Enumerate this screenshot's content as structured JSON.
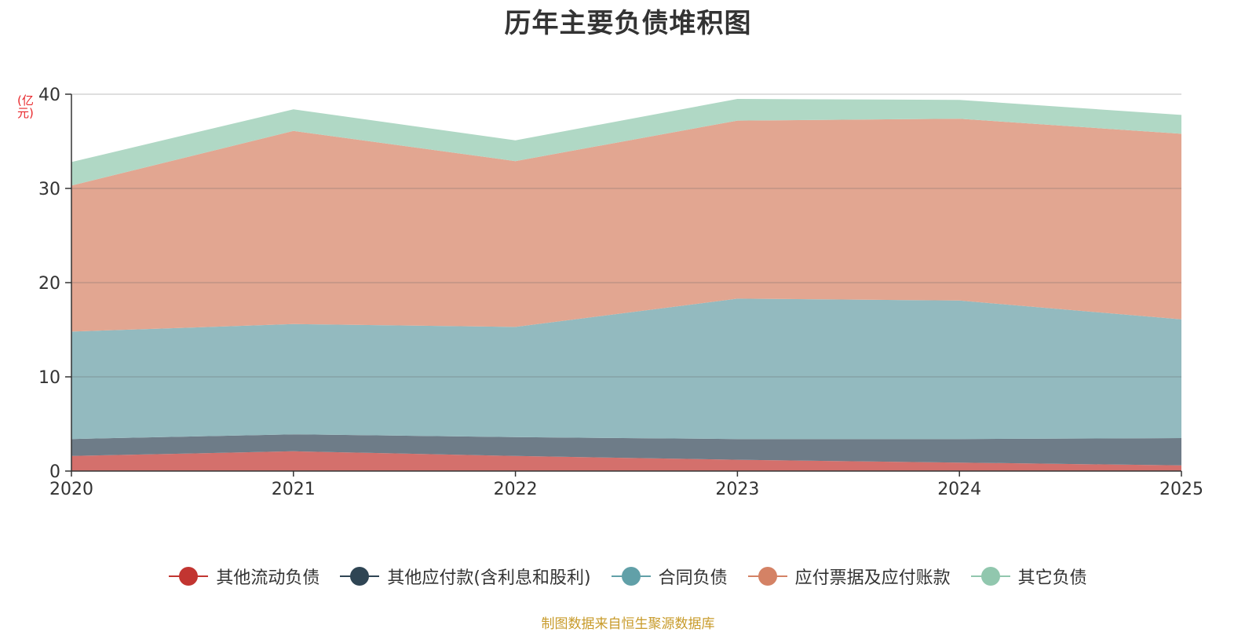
{
  "chart_data": {
    "type": "area",
    "stacked": true,
    "title": "历年主要负债堆积图",
    "ylabel": "(亿元)",
    "xlabel": "",
    "categories": [
      "2020",
      "2021",
      "2022",
      "2023",
      "2024",
      "2025"
    ],
    "ylim": [
      0,
      40
    ],
    "yticks": [
      0,
      10,
      20,
      30,
      40
    ],
    "grid": true,
    "legend_position": "bottom",
    "series": [
      {
        "name": "其他流动负债",
        "color": "#c23531",
        "fill": "#d4706c",
        "values": [
          1.6,
          2.1,
          1.6,
          1.2,
          0.9,
          0.6
        ]
      },
      {
        "name": "其他应付款(含利息和股利)",
        "color": "#2f4554",
        "fill": "#6e7c88",
        "values": [
          1.8,
          1.8,
          2.0,
          2.2,
          2.5,
          2.9
        ]
      },
      {
        "name": "合同负债",
        "color": "#61a0a8",
        "fill": "#93babf",
        "values": [
          11.4,
          11.7,
          11.7,
          14.9,
          14.7,
          12.6
        ]
      },
      {
        "name": "应付票据及应付账款",
        "color": "#d48265",
        "fill": "#e2a691",
        "values": [
          15.5,
          20.5,
          17.6,
          18.9,
          19.3,
          19.7
        ]
      },
      {
        "name": "其它负债",
        "color": "#91c7ae",
        "fill": "#b0d8c5",
        "values": [
          2.5,
          2.3,
          2.2,
          2.3,
          2.0,
          2.0
        ]
      }
    ]
  },
  "source_note": "制图数据来自恒生聚源数据库"
}
